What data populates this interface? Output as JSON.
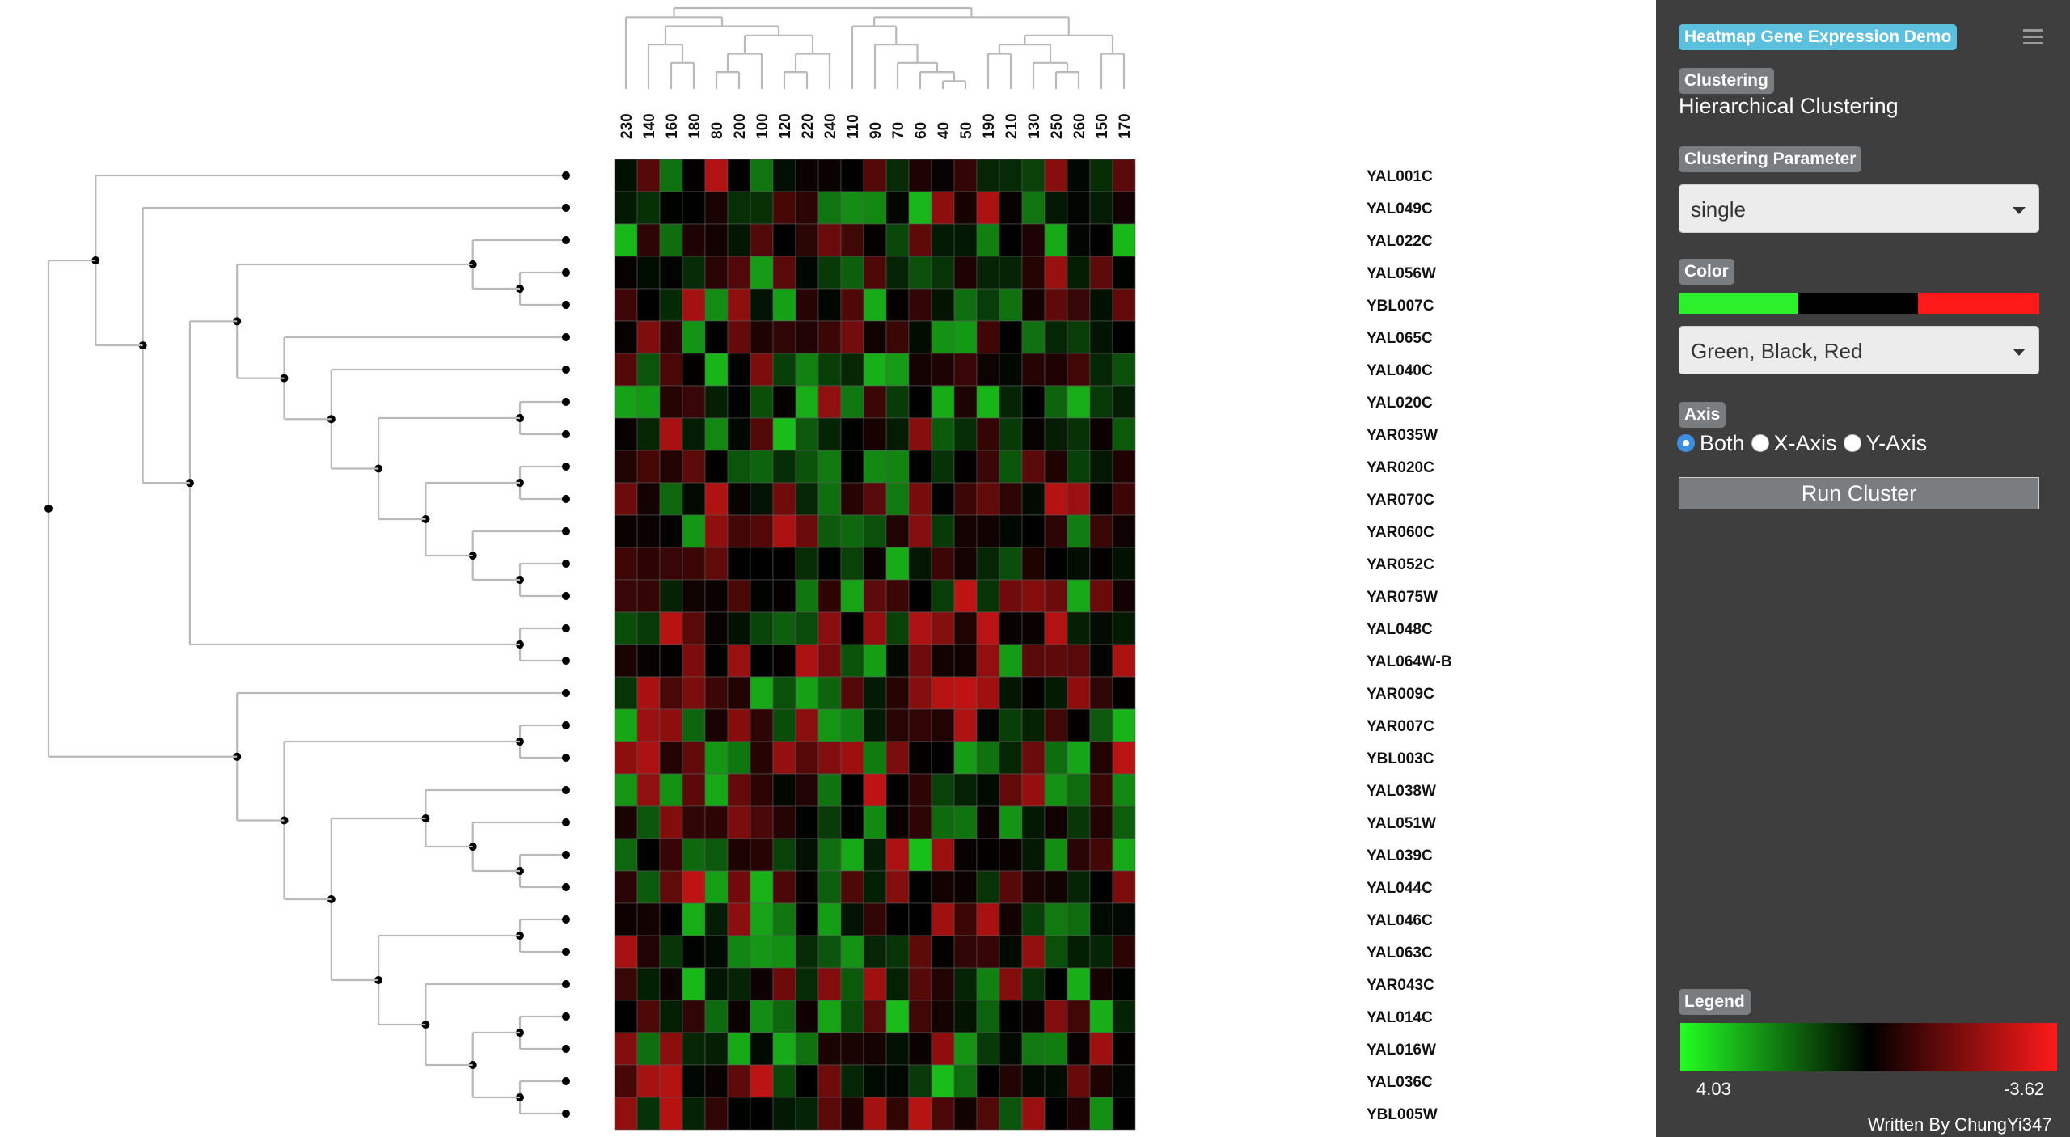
{
  "app": {
    "title": "Heatmap Gene Expression Demo",
    "author": "Written By ChungYi347"
  },
  "panel": {
    "clustering_label": "Clustering",
    "clustering_value": "Hierarchical Clustering",
    "parameter_label": "Clustering Parameter",
    "parameter_value": "single",
    "color_label": "Color",
    "color_value": "Green, Black, Red",
    "axis_label": "Axis",
    "axis_options": [
      "Both",
      "X-Axis",
      "Y-Axis"
    ],
    "axis_selected": "Both",
    "run_label": "Run Cluster",
    "legend_label": "Legend",
    "legend_max": "4.03",
    "legend_min": "-3.62"
  },
  "colors": {
    "panel_bg": "#3e3e3e",
    "badge": "#7a7d80",
    "app_badge": "#5bc0de",
    "low": "#22ff22",
    "mid": "#000000",
    "high": "#ff1a1a"
  },
  "icons": {
    "menu": "hamburger-menu-icon"
  },
  "chart_data": {
    "type": "heatmap",
    "columns": [
      "230",
      "140",
      "160",
      "180",
      "80",
      "200",
      "100",
      "120",
      "220",
      "240",
      "110",
      "90",
      "70",
      "60",
      "40",
      "50",
      "190",
      "210",
      "130",
      "250",
      "260",
      "150",
      "170"
    ],
    "rows": [
      "YAL001C",
      "YAL049C",
      "YAL022C",
      "YAL056W",
      "YBL007C",
      "YAL065C",
      "YAL040C",
      "YAL020C",
      "YAR035W",
      "YAR020C",
      "YAR070C",
      "YAR060C",
      "YAR052C",
      "YAR075W",
      "YAL048C",
      "YAL064W-B",
      "YAR009C",
      "YAR007C",
      "YBL003C",
      "YAL038W",
      "YAL051W",
      "YAL039C",
      "YAL044C",
      "YAL046C",
      "YAL063C",
      "YAR043C",
      "YAL014C",
      "YAL016W",
      "YAL036C",
      "YBL005W"
    ],
    "value_range": [
      -3.62,
      4.03
    ],
    "color_scale": [
      "#22ff22",
      "#000000",
      "#ff1a1a"
    ]
  }
}
